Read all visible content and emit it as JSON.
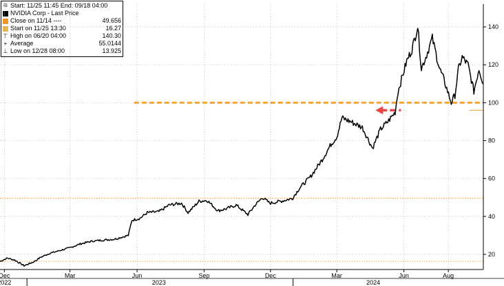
{
  "legend": {
    "header": "Start: 11/25 11:45 End: 09/18 04:00",
    "items": [
      {
        "label": "NVIDIA Corp - Last Price",
        "value": "",
        "swatch": "#000000",
        "kind": "box"
      },
      {
        "label": "Close on 11/14 ----",
        "value": "49.656",
        "swatch": "#f7931e",
        "kind": "box"
      },
      {
        "label": "Start on 11/25 13:30",
        "value": "16.27",
        "swatch": "#e8b64a",
        "kind": "box"
      },
      {
        "label": "High on 06/20 04:00",
        "value": "140.30",
        "kind": "high"
      },
      {
        "label": "Average",
        "value": "55.0144",
        "kind": "avg"
      },
      {
        "label": "Low on 12/28 08:00",
        "value": "13.925",
        "kind": "low"
      }
    ]
  },
  "chart_data": {
    "type": "line",
    "title": "",
    "xlabel": "",
    "ylabel": "",
    "ylim": [
      12,
      152
    ],
    "y_ticks": [
      20,
      40,
      60,
      80,
      100,
      120,
      140
    ],
    "x_range": [
      "2022-11-25",
      "2024-09-18"
    ],
    "x_month_ticks": [
      {
        "label": "Dec",
        "date": "2022-12-01"
      },
      {
        "label": "Mar",
        "date": "2023-03-01"
      },
      {
        "label": "Jun",
        "date": "2023-06-01"
      },
      {
        "label": "Sep",
        "date": "2023-09-01"
      },
      {
        "label": "Dec",
        "date": "2023-12-01"
      },
      {
        "label": "Mar",
        "date": "2024-03-01"
      },
      {
        "label": "Jun",
        "date": "2024-06-01"
      },
      {
        "label": "Aug",
        "date": "2024-08-01"
      }
    ],
    "x_year_labels": [
      {
        "label": "2022",
        "date": "2022-12-01"
      },
      {
        "label": "2023",
        "date": "2023-07-01"
      },
      {
        "label": "2024",
        "date": "2024-04-20"
      }
    ],
    "x_year_separators": [
      "2023-01-01",
      "2024-01-01"
    ],
    "grid": true,
    "legend_position": "top-left",
    "series": [
      {
        "name": "NVIDIA Corp - Last Price",
        "color": "#000000",
        "points": [
          [
            "2022-11-25",
            16.3
          ],
          [
            "2022-12-05",
            18.0
          ],
          [
            "2022-12-15",
            17.0
          ],
          [
            "2022-12-28",
            14.0
          ],
          [
            "2023-01-10",
            16.0
          ],
          [
            "2023-01-20",
            18.5
          ],
          [
            "2023-02-01",
            20.5
          ],
          [
            "2023-02-15",
            22.0
          ],
          [
            "2023-03-01",
            23.5
          ],
          [
            "2023-03-15",
            25.5
          ],
          [
            "2023-04-01",
            27.0
          ],
          [
            "2023-04-15",
            27.5
          ],
          [
            "2023-05-01",
            28.0
          ],
          [
            "2023-05-20",
            30.0
          ],
          [
            "2023-05-25",
            38.0
          ],
          [
            "2023-06-05",
            39.0
          ],
          [
            "2023-06-15",
            42.0
          ],
          [
            "2023-07-01",
            42.5
          ],
          [
            "2023-07-15",
            46.0
          ],
          [
            "2023-08-01",
            47.0
          ],
          [
            "2023-08-10",
            42.0
          ],
          [
            "2023-08-25",
            48.0
          ],
          [
            "2023-09-05",
            48.5
          ],
          [
            "2023-09-20",
            43.0
          ],
          [
            "2023-10-01",
            44.0
          ],
          [
            "2023-10-15",
            46.0
          ],
          [
            "2023-10-31",
            41.0
          ],
          [
            "2023-11-10",
            46.0
          ],
          [
            "2023-11-20",
            50.0
          ],
          [
            "2023-11-30",
            47.0
          ],
          [
            "2023-12-15",
            48.0
          ],
          [
            "2023-12-31",
            49.5
          ],
          [
            "2024-01-10",
            55.0
          ],
          [
            "2024-01-25",
            61.0
          ],
          [
            "2024-02-10",
            70.0
          ],
          [
            "2024-02-22",
            78.0
          ],
          [
            "2024-03-01",
            82.0
          ],
          [
            "2024-03-08",
            92.0
          ],
          [
            "2024-03-20",
            90.0
          ],
          [
            "2024-04-05",
            87.0
          ],
          [
            "2024-04-19",
            76.0
          ],
          [
            "2024-04-30",
            86.0
          ],
          [
            "2024-05-10",
            90.0
          ],
          [
            "2024-05-20",
            95.0
          ],
          [
            "2024-05-24",
            106.0
          ],
          [
            "2024-06-05",
            122.0
          ],
          [
            "2024-06-12",
            128.0
          ],
          [
            "2024-06-20",
            140.3
          ],
          [
            "2024-06-25",
            118.0
          ],
          [
            "2024-07-01",
            124.0
          ],
          [
            "2024-07-10",
            134.0
          ],
          [
            "2024-07-20",
            118.0
          ],
          [
            "2024-07-26",
            112.0
          ],
          [
            "2024-08-05",
            100.0
          ],
          [
            "2024-08-10",
            104.0
          ],
          [
            "2024-08-15",
            118.0
          ],
          [
            "2024-08-20",
            124.0
          ],
          [
            "2024-08-28",
            120.0
          ],
          [
            "2024-09-05",
            106.0
          ],
          [
            "2024-09-12",
            118.0
          ],
          [
            "2024-09-18",
            110.0
          ]
        ]
      }
    ],
    "reference_lines": [
      {
        "name": "Close on 11/14",
        "value": 49.656,
        "color": "#f7931e",
        "style": "dotted"
      },
      {
        "name": "Start on 11/25 13:30",
        "value": 16.27,
        "color": "#e8b64a",
        "style": "dotted"
      }
    ],
    "annotations": [
      {
        "type": "dashed-level",
        "value": 100,
        "from": "2023-05-28",
        "to": "2024-09-18",
        "color": "#f7a531"
      },
      {
        "type": "arrow-left",
        "value": 96,
        "from": "2024-04-23",
        "to": "2024-05-28",
        "color": "#ee4444"
      },
      {
        "type": "level",
        "value": 96,
        "from": "2024-08-30",
        "to": "2024-09-18",
        "color": "#e8b64a"
      }
    ]
  }
}
